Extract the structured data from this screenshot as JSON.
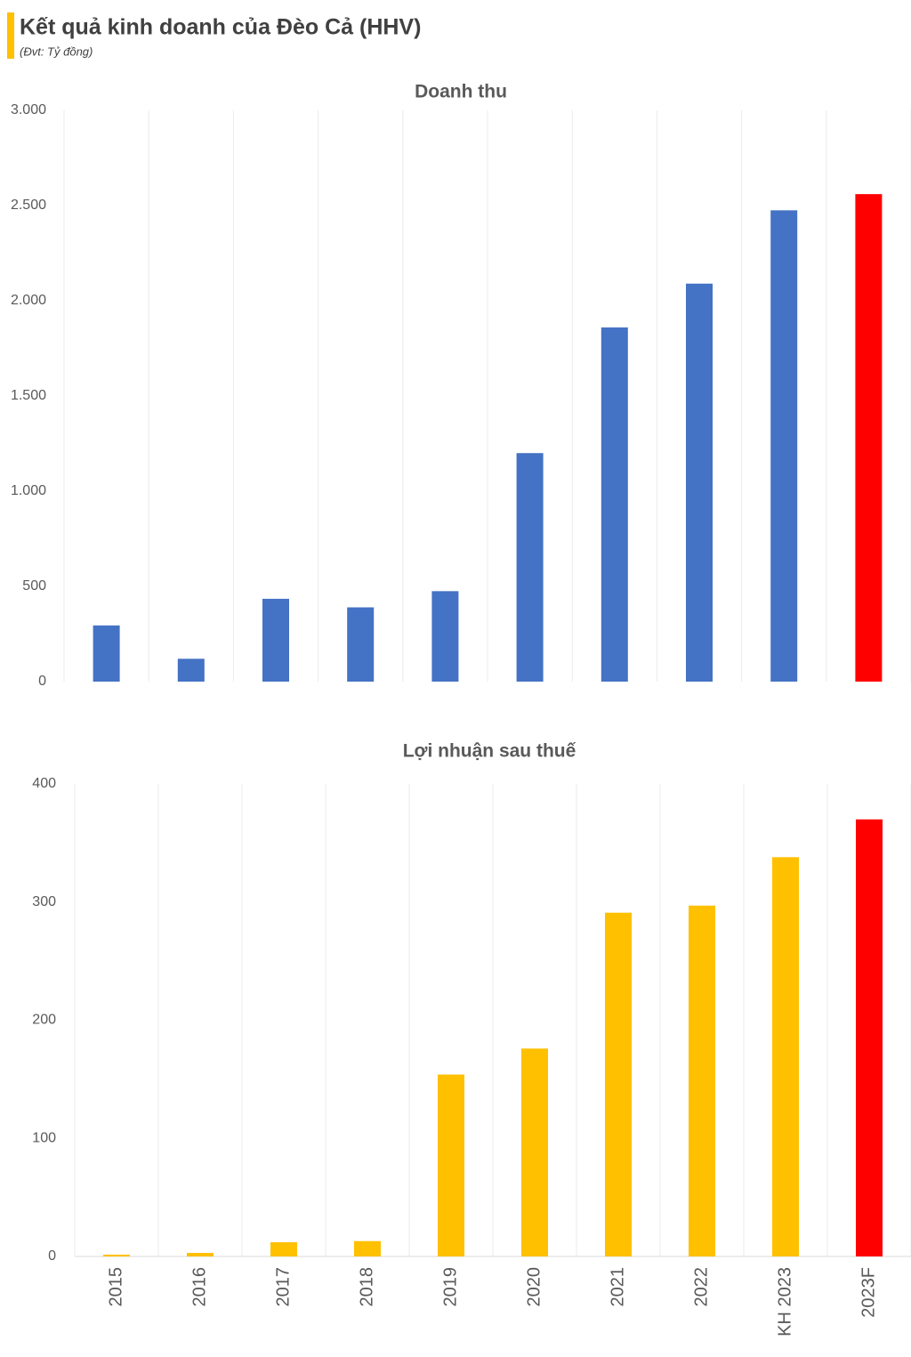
{
  "header": {
    "title": "Kết quả kinh doanh của Đèo Cả (HHV)",
    "subtitle": "(Đvt: Tỷ đồng)"
  },
  "chart_data": [
    {
      "type": "bar",
      "title": "Doanh thu",
      "values": [
        295,
        120,
        435,
        390,
        475,
        1200,
        1860,
        2090,
        2475,
        2560
      ],
      "colors": [
        "#4472c4",
        "#4472c4",
        "#4472c4",
        "#4472c4",
        "#4472c4",
        "#4472c4",
        "#4472c4",
        "#4472c4",
        "#4472c4",
        "#ff0000"
      ],
      "ylim": [
        0,
        3000
      ],
      "yticks": [
        0,
        500,
        {
          "value": 1000,
          "label": "1.000"
        },
        {
          "value": 1500,
          "label": "1.500"
        },
        {
          "value": 2000,
          "label": "2.000"
        },
        {
          "value": 2500,
          "label": "2.500"
        },
        {
          "value": 3000,
          "label": "3.000"
        }
      ],
      "grid": true
    },
    {
      "type": "bar",
      "title": "Lợi nhuận sau thuế",
      "categories": [
        "2015",
        "2016",
        "2017",
        "2018",
        "2019",
        "2020",
        "2021",
        "2022",
        "KH 2023",
        "2023F"
      ],
      "values": [
        1.5,
        3,
        12,
        13,
        154,
        176,
        291,
        297,
        338,
        370
      ],
      "colors": [
        "#ffc000",
        "#ffc000",
        "#ffc000",
        "#ffc000",
        "#ffc000",
        "#ffc000",
        "#ffc000",
        "#ffc000",
        "#ffc000",
        "#ff0000"
      ],
      "ylim": [
        0,
        400
      ],
      "yticks": [
        0,
        100,
        200,
        300,
        400
      ],
      "grid": true
    }
  ]
}
